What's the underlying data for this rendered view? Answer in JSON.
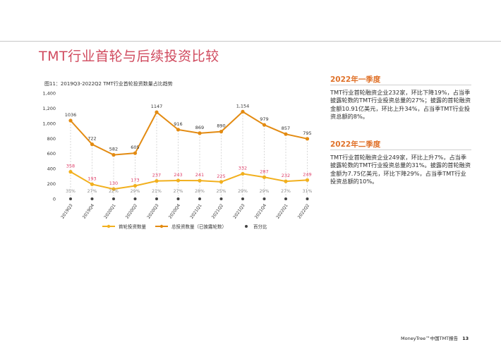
{
  "page": {
    "title": "TMT行业首轮与后续投资比较",
    "footer_text": "MoneyTree™中国TMT报告",
    "page_number": "13"
  },
  "sections": [
    {
      "heading": "2022年一季度",
      "body": "TMT行业首轮融资企业232家，环比下降19%，占当季披露轮数的TMT行业投资总量的27%；披露的首轮融资金额10.91亿美元，环比上升34%，占当季TMT行业投资总额的8%。"
    },
    {
      "heading": "2022年二季度",
      "body": "TMT行业首轮融资企业249家，环比上升7%，占当季披露轮数的TMT行业投资总量的31%。披露的首轮融资金额为7.75亿美元，环比下降29%，占当季TMT行业投资总额的10%。"
    }
  ],
  "colors": {
    "title": "#d04a5e",
    "accent_orange": "#e0722a",
    "first_round_line": "#f2b01e",
    "total_line": "#e38b12",
    "first_round_label": "#e0406a",
    "total_label": "#333333",
    "percent_label": "#8c8c8c",
    "percent_dot": "#444444"
  },
  "chart_data": {
    "type": "line",
    "title": "图11：2019Q3-2022Q2 TMT行业首轮投资数量占比趋势",
    "categories": [
      "2019Q3",
      "2019Q4",
      "2020Q1",
      "2020Q2",
      "2020Q3",
      "2020Q4",
      "2021Q1",
      "2021Q2",
      "2021Q3",
      "2021Q4",
      "2022Q1",
      "2022Q2"
    ],
    "ylim": [
      0,
      1400
    ],
    "yticks": [
      "1,400",
      "1,200",
      "1,000",
      "800",
      "600",
      "400",
      "200",
      "0"
    ],
    "ytick_values": [
      1400,
      1200,
      1000,
      800,
      600,
      400,
      200,
      0
    ],
    "grid": false,
    "legend_position": "bottom",
    "series": [
      {
        "name": "首轮投资数量",
        "values": [
          358,
          193,
          130,
          173,
          237,
          243,
          241,
          225,
          332,
          287,
          232,
          249
        ],
        "labels": [
          "358",
          "193",
          "130",
          "173",
          "237",
          "243",
          "241",
          "225",
          "332",
          "287",
          "232",
          "249"
        ]
      },
      {
        "name": "总投资数量（已披露轮数）",
        "values": [
          1036,
          722,
          582,
          605,
          1147,
          916,
          869,
          890,
          1154,
          979,
          857,
          795
        ],
        "labels": [
          "1036",
          "722",
          "582",
          "605",
          "1147",
          "916",
          "869",
          "890",
          "1,154",
          "979",
          "857",
          "795"
        ]
      },
      {
        "name": "百分比",
        "values": [
          35,
          27,
          22,
          29,
          21,
          27,
          28,
          25,
          29,
          29,
          27,
          31
        ],
        "labels": [
          "35%",
          "27%",
          "22%",
          "29%",
          "21%",
          "27%",
          "28%",
          "25%",
          "29%",
          "29%",
          "27%",
          "31%"
        ]
      }
    ]
  }
}
